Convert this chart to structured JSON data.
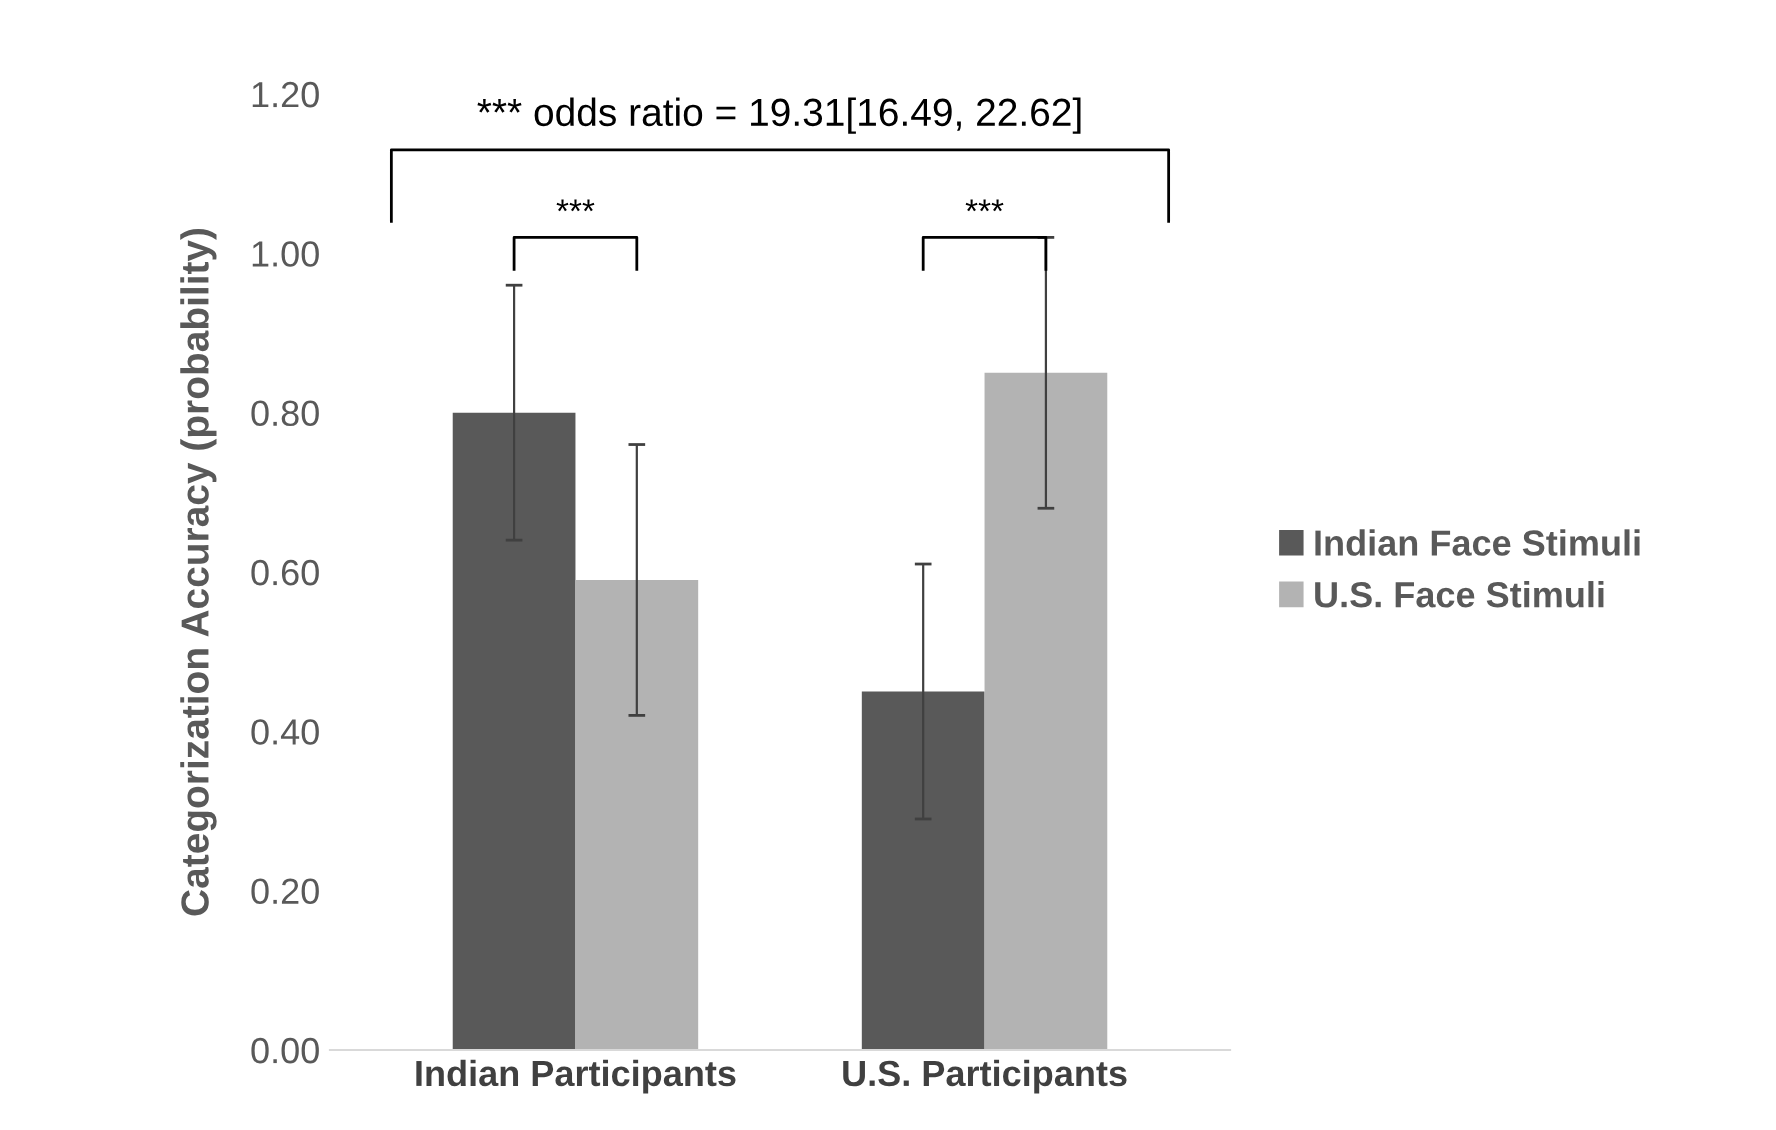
{
  "chart_data": {
    "type": "bar",
    "ylabel": "Categorization Accuracy (probability)",
    "categories": [
      "Indian Participants",
      "U.S. Participants"
    ],
    "series": [
      {
        "name": "Indian Face Stimuli",
        "color": "#595959",
        "values": [
          0.8,
          0.45
        ],
        "errors": [
          [
            0.64,
            0.96
          ],
          [
            0.29,
            0.61
          ]
        ]
      },
      {
        "name": "U.S. Face Stimuli",
        "color": "#b3b3b3",
        "values": [
          0.59,
          0.85
        ],
        "errors": [
          [
            0.42,
            0.76
          ],
          [
            0.68,
            1.02
          ]
        ]
      }
    ],
    "ylim": [
      0,
      1.2
    ],
    "yticks": [
      {
        "value": 0,
        "label": "0.00"
      },
      {
        "value": 0.2,
        "label": "0.20"
      },
      {
        "value": 0.4,
        "label": "0.40"
      },
      {
        "value": 0.6,
        "label": "0.60"
      },
      {
        "value": 0.8,
        "label": "0.80"
      },
      {
        "value": 1.0,
        "label": "1.00"
      },
      {
        "value": 1.2,
        "label": "1.20"
      }
    ],
    "annotations": [
      "*** odds ratio = 19.31[16.49, 22.62]",
      "***",
      "***"
    ],
    "grid": false,
    "legend": "right"
  }
}
